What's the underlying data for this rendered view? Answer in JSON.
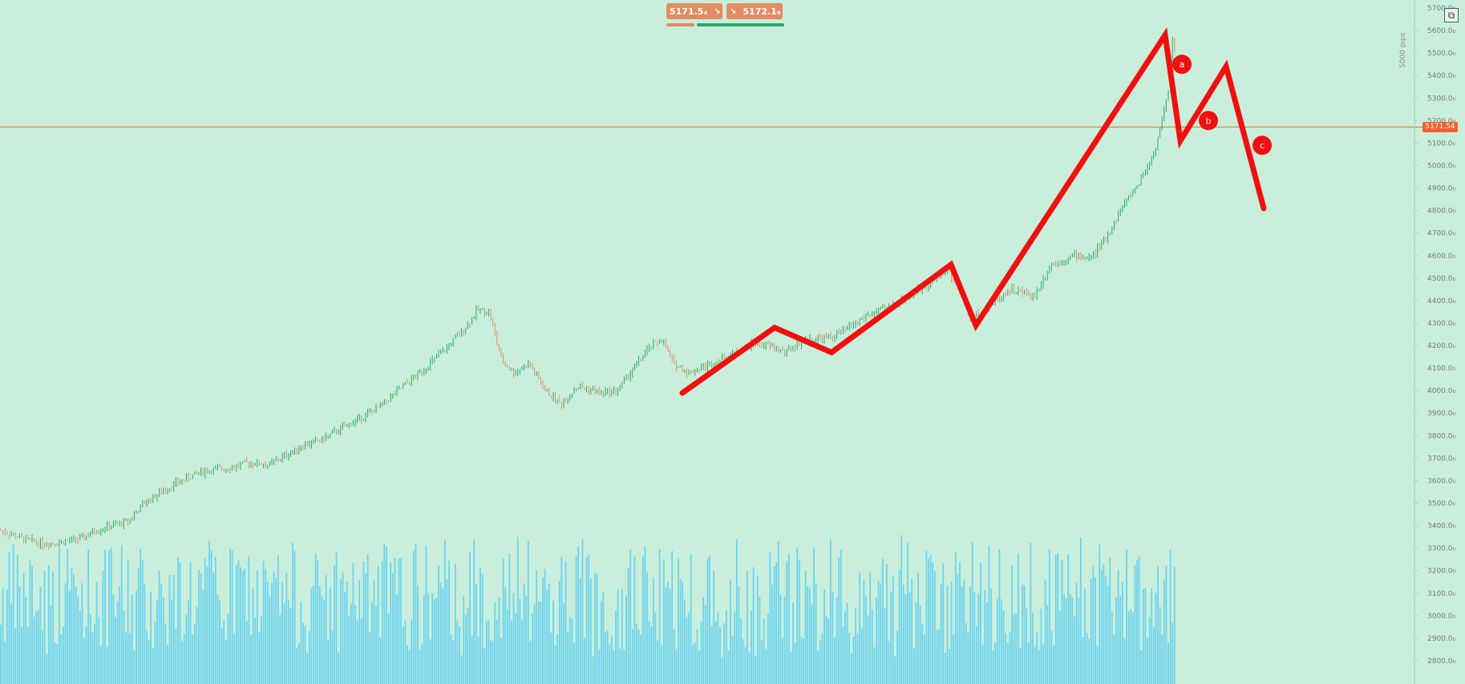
{
  "trade_panel": {
    "sell_price": "5171.5₄",
    "buy_price": "5172.1₉",
    "sell_icon": "arrow-down-right-icon",
    "buy_icon": "arrow-down-right-icon"
  },
  "current_price_label": "5171.54",
  "range_label": "5000 pips",
  "wave_labels": [
    "a",
    "b",
    "c"
  ],
  "colors": {
    "background": "#c9efdc",
    "up_candle": "#26a96c",
    "down_candle": "#e38b62",
    "volume": "#6dd3ee",
    "annotation": "#f01010",
    "price_line": "#f0622a"
  },
  "chart_data": {
    "type": "candlestick",
    "y_axis": {
      "ticks": [
        2800,
        2900,
        3000,
        3100,
        3200,
        3300,
        3400,
        3500,
        3600,
        3700,
        3800,
        3900,
        4000,
        4100,
        4200,
        4300,
        4400,
        4500,
        4600,
        4700,
        4800,
        4900,
        5000,
        5100,
        5200,
        5300,
        5400,
        5500,
        5600,
        5700
      ],
      "tick_suffix": "₀",
      "range": [
        2750,
        5720
      ]
    },
    "current_price": 5171.54,
    "price_path_keypoints": [
      [
        0,
        3380
      ],
      [
        30,
        3340
      ],
      [
        55,
        3320
      ],
      [
        80,
        3330
      ],
      [
        100,
        3340
      ],
      [
        120,
        3380
      ],
      [
        160,
        3420
      ],
      [
        180,
        3500
      ],
      [
        210,
        3570
      ],
      [
        250,
        3640
      ],
      [
        290,
        3660
      ],
      [
        310,
        3680
      ],
      [
        335,
        3670
      ],
      [
        360,
        3720
      ],
      [
        380,
        3760
      ],
      [
        400,
        3780
      ],
      [
        440,
        3860
      ],
      [
        470,
        3920
      ],
      [
        500,
        4010
      ],
      [
        530,
        4100
      ],
      [
        560,
        4200
      ],
      [
        585,
        4300
      ],
      [
        595,
        4360
      ],
      [
        610,
        4350
      ],
      [
        625,
        4140
      ],
      [
        640,
        4080
      ],
      [
        660,
        4120
      ],
      [
        680,
        4000
      ],
      [
        700,
        3940
      ],
      [
        720,
        4020
      ],
      [
        750,
        3990
      ],
      [
        770,
        4000
      ],
      [
        790,
        4100
      ],
      [
        810,
        4190
      ],
      [
        825,
        4230
      ],
      [
        840,
        4120
      ],
      [
        860,
        4080
      ],
      [
        900,
        4140
      ],
      [
        940,
        4210
      ],
      [
        960,
        4200
      ],
      [
        980,
        4170
      ],
      [
        1000,
        4220
      ],
      [
        1040,
        4240
      ],
      [
        1080,
        4330
      ],
      [
        1120,
        4390
      ],
      [
        1160,
        4480
      ],
      [
        1180,
        4540
      ],
      [
        1195,
        4460
      ],
      [
        1210,
        4320
      ],
      [
        1230,
        4370
      ],
      [
        1260,
        4450
      ],
      [
        1290,
        4420
      ],
      [
        1310,
        4560
      ],
      [
        1340,
        4600
      ],
      [
        1360,
        4590
      ],
      [
        1380,
        4680
      ],
      [
        1400,
        4820
      ],
      [
        1420,
        4920
      ],
      [
        1440,
        5060
      ],
      [
        1450,
        5220
      ],
      [
        1458,
        5340
      ],
      [
        1462,
        5580
      ],
      [
        1465,
        5500
      ]
    ],
    "elliott_overlay": [
      [
        851,
        3990
      ],
      [
        966,
        4280
      ],
      [
        1037,
        4170
      ],
      [
        1186,
        4560
      ],
      [
        1217,
        4290
      ],
      [
        1453,
        5580
      ],
      [
        1472,
        5110
      ],
      [
        1529,
        5440
      ],
      [
        1576,
        4810
      ]
    ],
    "wave_label_points": [
      {
        "label": "a",
        "x": 1474,
        "y": 5450
      },
      {
        "label": "b",
        "x": 1507,
        "y": 5200
      },
      {
        "label": "c",
        "x": 1574,
        "y": 5090
      }
    ],
    "volume": {
      "min_level": 0.72,
      "max_level": 0.98
    }
  }
}
